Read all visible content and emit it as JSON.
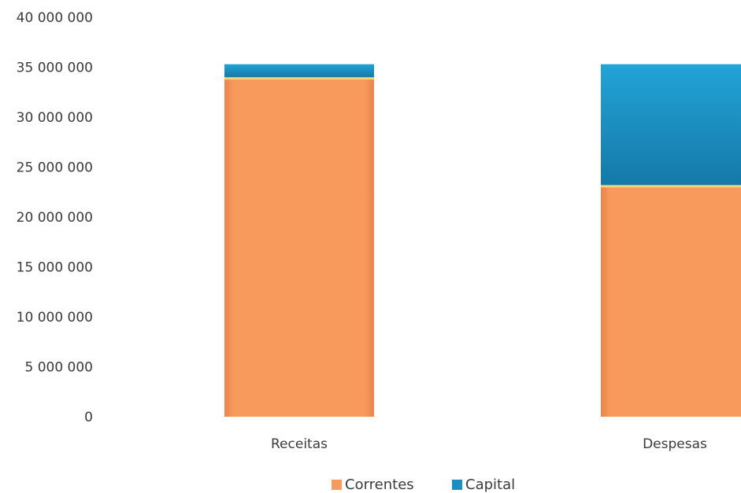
{
  "chart_data": {
    "type": "bar",
    "stacked": true,
    "categories": [
      "Receitas",
      "Despesas"
    ],
    "series": [
      {
        "name": "Correntes",
        "values": [
          34000000,
          23200000
        ],
        "color": "#f79a5b"
      },
      {
        "name": "Capital",
        "values": [
          1300000,
          12100000
        ],
        "color": "#1b8fc2"
      }
    ],
    "ylim": [
      0,
      40000000
    ],
    "yticks": [
      0,
      5000000,
      10000000,
      15000000,
      20000000,
      25000000,
      30000000,
      35000000,
      40000000
    ],
    "ytick_labels": [
      "0",
      "5 000 000",
      "10 000 000",
      "15 000 000",
      "20 000 000",
      "25 000 000",
      "30 000 000",
      "35 000 000",
      "40 000 000"
    ],
    "grid": false,
    "legend_position": "bottom"
  }
}
